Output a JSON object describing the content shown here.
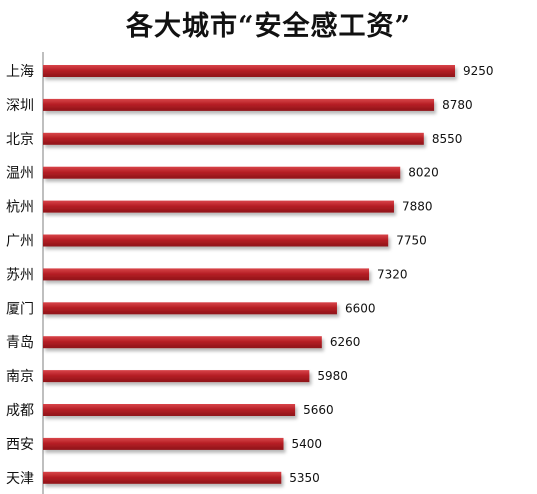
{
  "chart_data": {
    "type": "bar",
    "orientation": "horizontal",
    "title": "各大城市“安全感工资”",
    "categories": [
      "上海",
      "深圳",
      "北京",
      "温州",
      "杭州",
      "广州",
      "苏州",
      "厦门",
      "青岛",
      "南京",
      "成都",
      "西安",
      "天津"
    ],
    "values": [
      9250,
      8780,
      8550,
      8020,
      7880,
      7750,
      7320,
      6600,
      6260,
      5980,
      5660,
      5400,
      5350
    ],
    "xlabel": "",
    "ylabel": "",
    "xlim": [
      0,
      10000
    ],
    "grid": false,
    "legend": "none",
    "data_labels": true,
    "bar_color": "#b01c22",
    "axis_color": "#7f7f7f"
  }
}
